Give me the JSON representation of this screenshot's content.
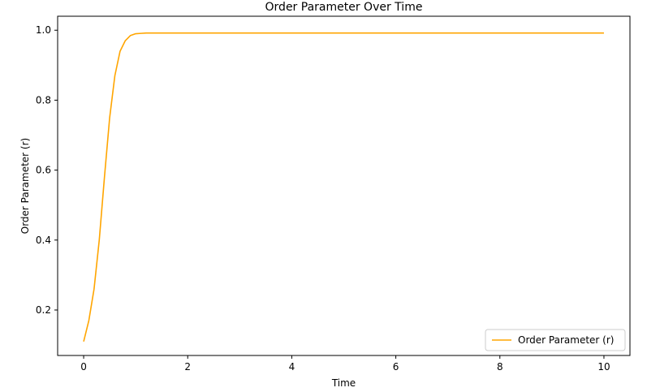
{
  "chart_data": {
    "type": "line",
    "title": "Order Parameter Over Time",
    "xlabel": "Time",
    "ylabel": "Order Parameter (r)",
    "xlim": [
      -0.5,
      10.5
    ],
    "ylim": [
      0.07,
      1.04
    ],
    "xticks": [
      0,
      2,
      4,
      6,
      8,
      10
    ],
    "yticks": [
      0.2,
      0.4,
      0.6,
      0.8,
      1.0
    ],
    "xtick_labels": [
      "0",
      "2",
      "4",
      "6",
      "8",
      "10"
    ],
    "ytick_labels": [
      "0.2",
      "0.4",
      "0.6",
      "0.8",
      "1.0"
    ],
    "grid": false,
    "legend_position": "lower-right",
    "series": [
      {
        "name": "Order Parameter (r)",
        "color": "#ffa500",
        "x": [
          0,
          0.1,
          0.2,
          0.3,
          0.4,
          0.5,
          0.6,
          0.7,
          0.8,
          0.9,
          1.0,
          1.1,
          1.2,
          1.4,
          1.6,
          2,
          3,
          4,
          5,
          6,
          7,
          8,
          9,
          10
        ],
        "y": [
          0.11,
          0.17,
          0.26,
          0.4,
          0.58,
          0.75,
          0.87,
          0.94,
          0.97,
          0.985,
          0.99,
          0.991,
          0.992,
          0.992,
          0.992,
          0.992,
          0.992,
          0.992,
          0.992,
          0.992,
          0.992,
          0.992,
          0.992,
          0.992
        ]
      }
    ]
  }
}
